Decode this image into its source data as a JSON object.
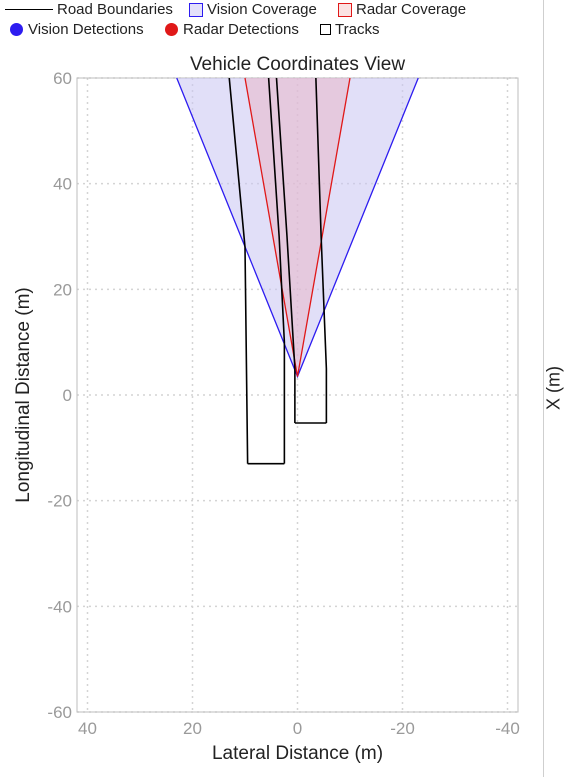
{
  "legend": {
    "road_boundaries": "Road Boundaries",
    "vision_coverage": "Vision Coverage",
    "radar_coverage": "Radar Coverage",
    "vision_detections": "Vision Detections",
    "radar_detections": "Radar Detections",
    "tracks": "Tracks"
  },
  "right_panel": {
    "axis_label": "X (m)"
  },
  "colors": {
    "vision": "#2d1cf0",
    "vision_fill": "#c9c4f3",
    "radar": "#e01818",
    "radar_fill": "#e9b7c8",
    "road": "#000000",
    "ego": "#5b8fd6",
    "grid": "#d4d4d4",
    "axis": "#9a9a9a"
  },
  "chart_data": {
    "type": "scatter",
    "title": "Vehicle Coordinates View",
    "xlabel": "Lateral Distance (m)",
    "ylabel": "Longitudinal Distance (m)",
    "xlim": [
      42,
      -42
    ],
    "ylim": [
      -60,
      60
    ],
    "x_reversed": true,
    "x_ticks": [
      40,
      20,
      0,
      -20,
      -40
    ],
    "y_ticks": [
      60,
      40,
      20,
      0,
      -20,
      -40,
      -60
    ],
    "x_tick_labels": [
      "40",
      "20",
      "0",
      "-20",
      "-40"
    ],
    "y_tick_labels": [
      "60",
      "40",
      "20",
      "0",
      "-20",
      "-40",
      "-60"
    ],
    "grid": true,
    "vision_coverage": {
      "origin": [
        0,
        3.5
      ],
      "points": [
        [
          23,
          60
        ],
        [
          -23,
          60
        ]
      ]
    },
    "radar_coverage": {
      "origin": [
        0,
        3.5
      ],
      "points": [
        [
          10,
          60
        ],
        [
          -10,
          60
        ]
      ]
    },
    "road_boundaries": [
      [
        [
          13,
          60
        ],
        [
          10,
          28
        ],
        [
          9.5,
          -13
        ]
      ],
      [
        [
          5.5,
          60
        ],
        [
          3.5,
          30
        ],
        [
          2.5,
          10
        ],
        [
          2.5,
          -13
        ]
      ],
      [
        [
          -3.5,
          60
        ],
        [
          -4.5,
          30
        ],
        [
          -5.5,
          5
        ],
        [
          -5.5,
          -5.3
        ]
      ],
      [
        [
          0.5,
          -5.3
        ],
        [
          0.5,
          5
        ],
        [
          2,
          30
        ],
        [
          4,
          60
        ]
      ]
    ],
    "ego_vehicle": {
      "x": [
        -0.85,
        0.85
      ],
      "y": [
        -0.8,
        3.6
      ]
    }
  }
}
